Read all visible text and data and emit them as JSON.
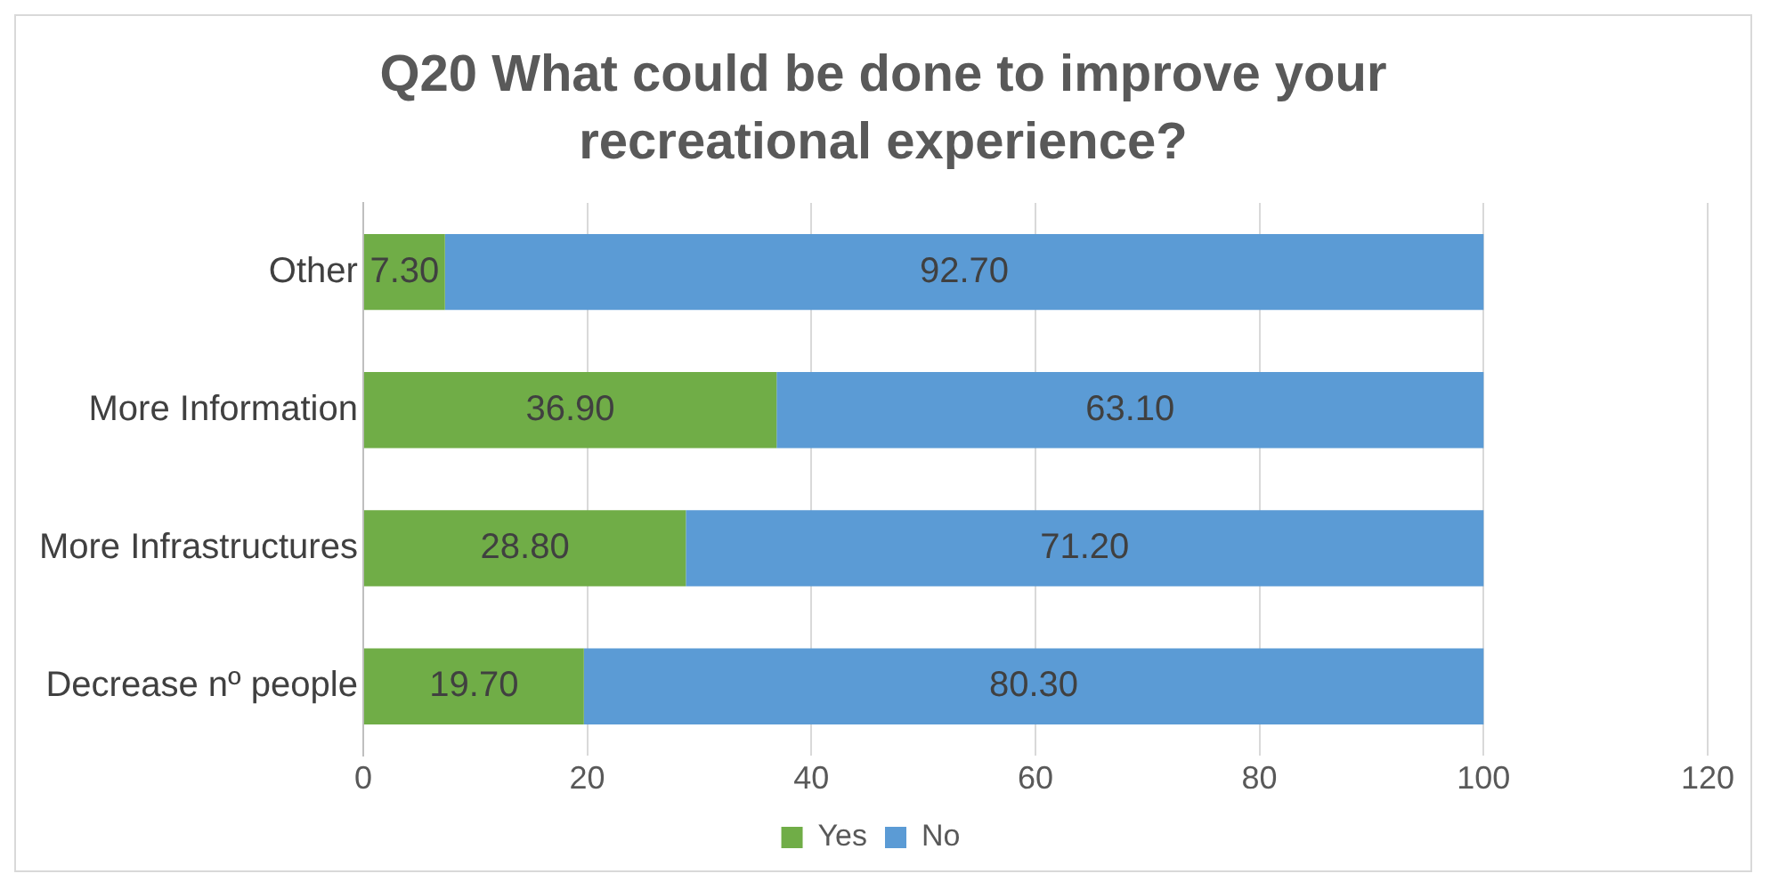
{
  "chart_data": {
    "type": "bar",
    "orientation": "horizontal",
    "stacked": true,
    "title": "Q20 What could be done to improve your recreational experience?",
    "categories": [
      "Other",
      "More Information",
      "More Infrastructures",
      "Decrease nº people"
    ],
    "series": [
      {
        "name": "Yes",
        "color": "#70ad47",
        "values": [
          7.3,
          36.9,
          28.8,
          19.7
        ],
        "value_labels": [
          "7.30",
          "36.90",
          "28.80",
          "19.70"
        ]
      },
      {
        "name": "No",
        "color": "#5b9bd5",
        "values": [
          92.7,
          63.1,
          71.2,
          80.3
        ],
        "value_labels": [
          "92.70",
          "63.10",
          "71.20",
          "80.30"
        ]
      }
    ],
    "xlim": [
      0,
      120
    ],
    "xticks": [
      0,
      20,
      40,
      60,
      80,
      100,
      120
    ],
    "grid": "x",
    "legend": "bottom"
  }
}
